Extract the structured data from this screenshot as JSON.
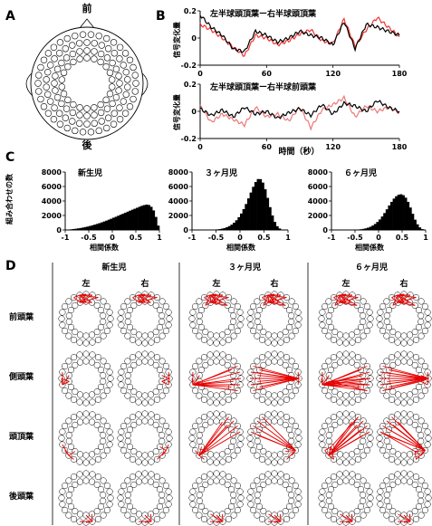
{
  "panels": {
    "A": {
      "label": "A",
      "front": "前",
      "back": "後"
    },
    "B": {
      "label": "B",
      "top_title": "左半球頭頂葉ー右半球頭頂葉",
      "bottom_title": "左半球頭頂葉ー右半球前頭葉",
      "ylabel": "信号変化量",
      "xlabel": "時間（秒）"
    },
    "C": {
      "label": "C",
      "ylabel": "組み合わせの数",
      "xlabel": "相関係数"
    },
    "D": {
      "label": "D",
      "columns": [
        "新生児",
        "３ヶ月児",
        "６ヶ月児"
      ],
      "sides": [
        "左",
        "右"
      ],
      "rows": [
        "前頭葉",
        "側頭葉",
        "頭頂葉",
        "後頭葉"
      ]
    }
  },
  "chart_data": [
    {
      "type": "line",
      "panel": "B-top",
      "title": "左半球頭頂葉ー右半球頭頂葉",
      "xlabel": "時間（秒）",
      "ylabel": "信号変化量",
      "xlim": [
        0,
        180
      ],
      "ylim": [
        -0.2,
        0.2
      ],
      "xticks": [
        0,
        60,
        120,
        180
      ],
      "yticks": [
        -0.2,
        0,
        0.2
      ],
      "x": [
        0,
        10,
        20,
        30,
        40,
        50,
        60,
        70,
        80,
        90,
        100,
        110,
        120,
        130,
        140,
        150,
        160,
        170,
        180
      ],
      "series": [
        {
          "color": "#000000",
          "values": [
            0.17,
            0.08,
            0.02,
            -0.08,
            -0.1,
            0.05,
            0.02,
            -0.03,
            0.0,
            0.05,
            0.02,
            0.0,
            -0.05,
            0.12,
            -0.08,
            0.1,
            0.08,
            0.05,
            0.02
          ]
        },
        {
          "color": "#ee3333",
          "values": [
            0.1,
            0.06,
            0.0,
            -0.07,
            -0.13,
            0.02,
            0.0,
            -0.05,
            -0.02,
            0.03,
            0.06,
            -0.02,
            -0.04,
            0.14,
            -0.06,
            0.06,
            0.15,
            0.08,
            0.01
          ]
        }
      ]
    },
    {
      "type": "line",
      "panel": "B-bottom",
      "title": "左半球頭頂葉ー右半球前頭葉",
      "xlabel": "時間（秒）",
      "ylabel": "信号変化量",
      "xlim": [
        0,
        180
      ],
      "ylim": [
        -0.2,
        0.2
      ],
      "xticks": [
        0,
        60,
        120,
        180
      ],
      "yticks": [
        -0.2,
        0,
        0.2
      ],
      "x": [
        0,
        10,
        20,
        30,
        40,
        50,
        60,
        70,
        80,
        90,
        100,
        110,
        120,
        130,
        140,
        150,
        160,
        170,
        180
      ],
      "series": [
        {
          "color": "#000000",
          "values": [
            0.02,
            -0.03,
            0.01,
            -0.04,
            0.03,
            -0.02,
            0.0,
            -0.05,
            -0.01,
            0.02,
            -0.03,
            0.05,
            -0.02,
            0.06,
            0.04,
            0.0,
            0.08,
            0.03,
            0.0
          ]
        },
        {
          "color": "#ee7777",
          "values": [
            0.04,
            -0.08,
            -0.02,
            -0.06,
            -0.1,
            0.03,
            -0.04,
            -0.02,
            -0.07,
            0.03,
            -0.12,
            0.01,
            0.05,
            0.1,
            -0.04,
            0.04,
            0.0,
            0.03,
            -0.01
          ]
        }
      ]
    },
    {
      "type": "bar",
      "panel": "C-1",
      "title": "新生児",
      "xlabel": "相関係数",
      "ylabel": "組み合わせの数",
      "xlim": [
        -1,
        1
      ],
      "ylim": [
        0,
        8000
      ],
      "xticks": [
        -1,
        -0.5,
        0,
        0.5,
        1
      ],
      "yticks": [
        0,
        2000,
        4000,
        6000,
        8000
      ],
      "values": [
        30,
        60,
        90,
        130,
        170,
        220,
        270,
        330,
        400,
        470,
        550,
        640,
        730,
        830,
        940,
        1050,
        1170,
        1290,
        1420,
        1550,
        1690,
        1820,
        1960,
        2100,
        2240,
        2380,
        2520,
        2660,
        2800,
        2930,
        3060,
        3200,
        3330,
        3430,
        3500,
        3450,
        3200,
        2700,
        1800,
        600
      ]
    },
    {
      "type": "bar",
      "panel": "C-2",
      "title": "３ヶ月児",
      "xlabel": "相関係数",
      "xlim": [
        -1,
        1
      ],
      "ylim": [
        0,
        8000
      ],
      "xticks": [
        -1,
        -0.5,
        0,
        0.5,
        1
      ],
      "yticks": [
        0,
        2000,
        4000,
        6000,
        8000
      ],
      "values": [
        0,
        0,
        0,
        0,
        0,
        0,
        10,
        20,
        30,
        50,
        80,
        120,
        180,
        260,
        380,
        530,
        730,
        1000,
        1340,
        1760,
        2270,
        2880,
        3580,
        4360,
        5170,
        5960,
        6620,
        7030,
        7020,
        6540,
        5620,
        4430,
        3150,
        2000,
        1110,
        520,
        200,
        60,
        10,
        0
      ]
    },
    {
      "type": "bar",
      "panel": "C-3",
      "title": "６ヶ月児",
      "xlabel": "相関係数",
      "xlim": [
        -1,
        1
      ],
      "ylim": [
        0,
        8000
      ],
      "xticks": [
        -1,
        -0.5,
        0,
        0.5,
        1
      ],
      "yticks": [
        0,
        2000,
        4000,
        6000,
        8000
      ],
      "values": [
        0,
        0,
        0,
        0,
        0,
        0,
        0,
        10,
        20,
        30,
        50,
        70,
        100,
        150,
        220,
        310,
        440,
        610,
        830,
        1110,
        1450,
        1860,
        2330,
        2850,
        3380,
        3880,
        4330,
        4660,
        4870,
        4930,
        4800,
        4460,
        3880,
        3100,
        2230,
        1420,
        780,
        350,
        120,
        20
      ]
    }
  ]
}
